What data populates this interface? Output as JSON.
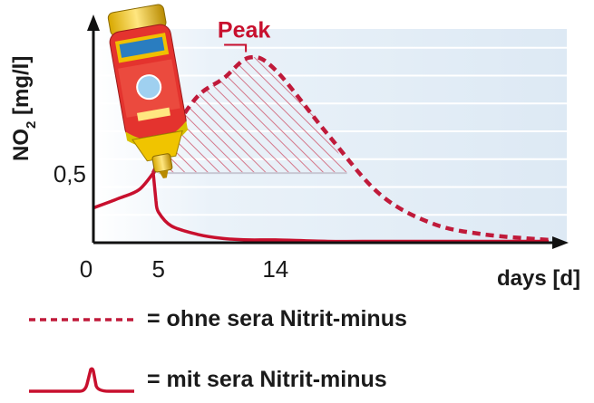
{
  "chart_data": {
    "type": "line",
    "x": [
      0,
      2,
      3.5,
      4.6,
      5,
      6,
      8,
      10,
      12,
      14,
      18,
      22,
      26,
      30,
      35
    ],
    "series": [
      {
        "name": "ohne sera Nitrit-minus",
        "style": "dashed",
        "values": [
          0.25,
          0.32,
          0.38,
          0.5,
          0.58,
          0.78,
          1.05,
          1.18,
          1.33,
          1.24,
          0.78,
          0.35,
          0.14,
          0.06,
          0.02
        ]
      },
      {
        "name": "mit sera Nitrit-minus",
        "style": "solid",
        "values": [
          0.25,
          0.32,
          0.38,
          0.5,
          0.22,
          0.12,
          0.06,
          0.03,
          0.02,
          0.02,
          0.01,
          0.01,
          0.01,
          0.01,
          0.01
        ]
      }
    ],
    "x_ticks": [
      {
        "value": 0,
        "label": "0"
      },
      {
        "value": 5,
        "label": "5"
      },
      {
        "value": 14,
        "label": "14"
      }
    ],
    "y_ticks": [
      {
        "value": 0.5,
        "label": "0,5"
      }
    ],
    "xlabel": "days [d]",
    "ylabel_main": "NO",
    "ylabel_sub": "2",
    "ylabel_unit": " [mg/l]",
    "xlim": [
      0,
      35
    ],
    "ylim": [
      0,
      1.6
    ],
    "annotation": {
      "text": "Peak",
      "x": 12,
      "y": 1.33
    },
    "hatched_region": {
      "y_floor": 0.5,
      "x_from": 5,
      "x_to": 19.5
    },
    "grid": true,
    "colors": {
      "curve": "#c8102e",
      "dashed": "#c01a3a",
      "plot_bg": "#e4eef7",
      "hatch": "#d26a7e",
      "axis": "#111111"
    }
  },
  "legend": [
    {
      "text": "= ohne sera Nitrit-minus",
      "icon": "dashed-line"
    },
    {
      "text": "= mit sera Nitrit-minus",
      "icon": "solid-step-line"
    }
  ],
  "product_image": {
    "icon": "sera-nitrit-minus-bottle"
  }
}
